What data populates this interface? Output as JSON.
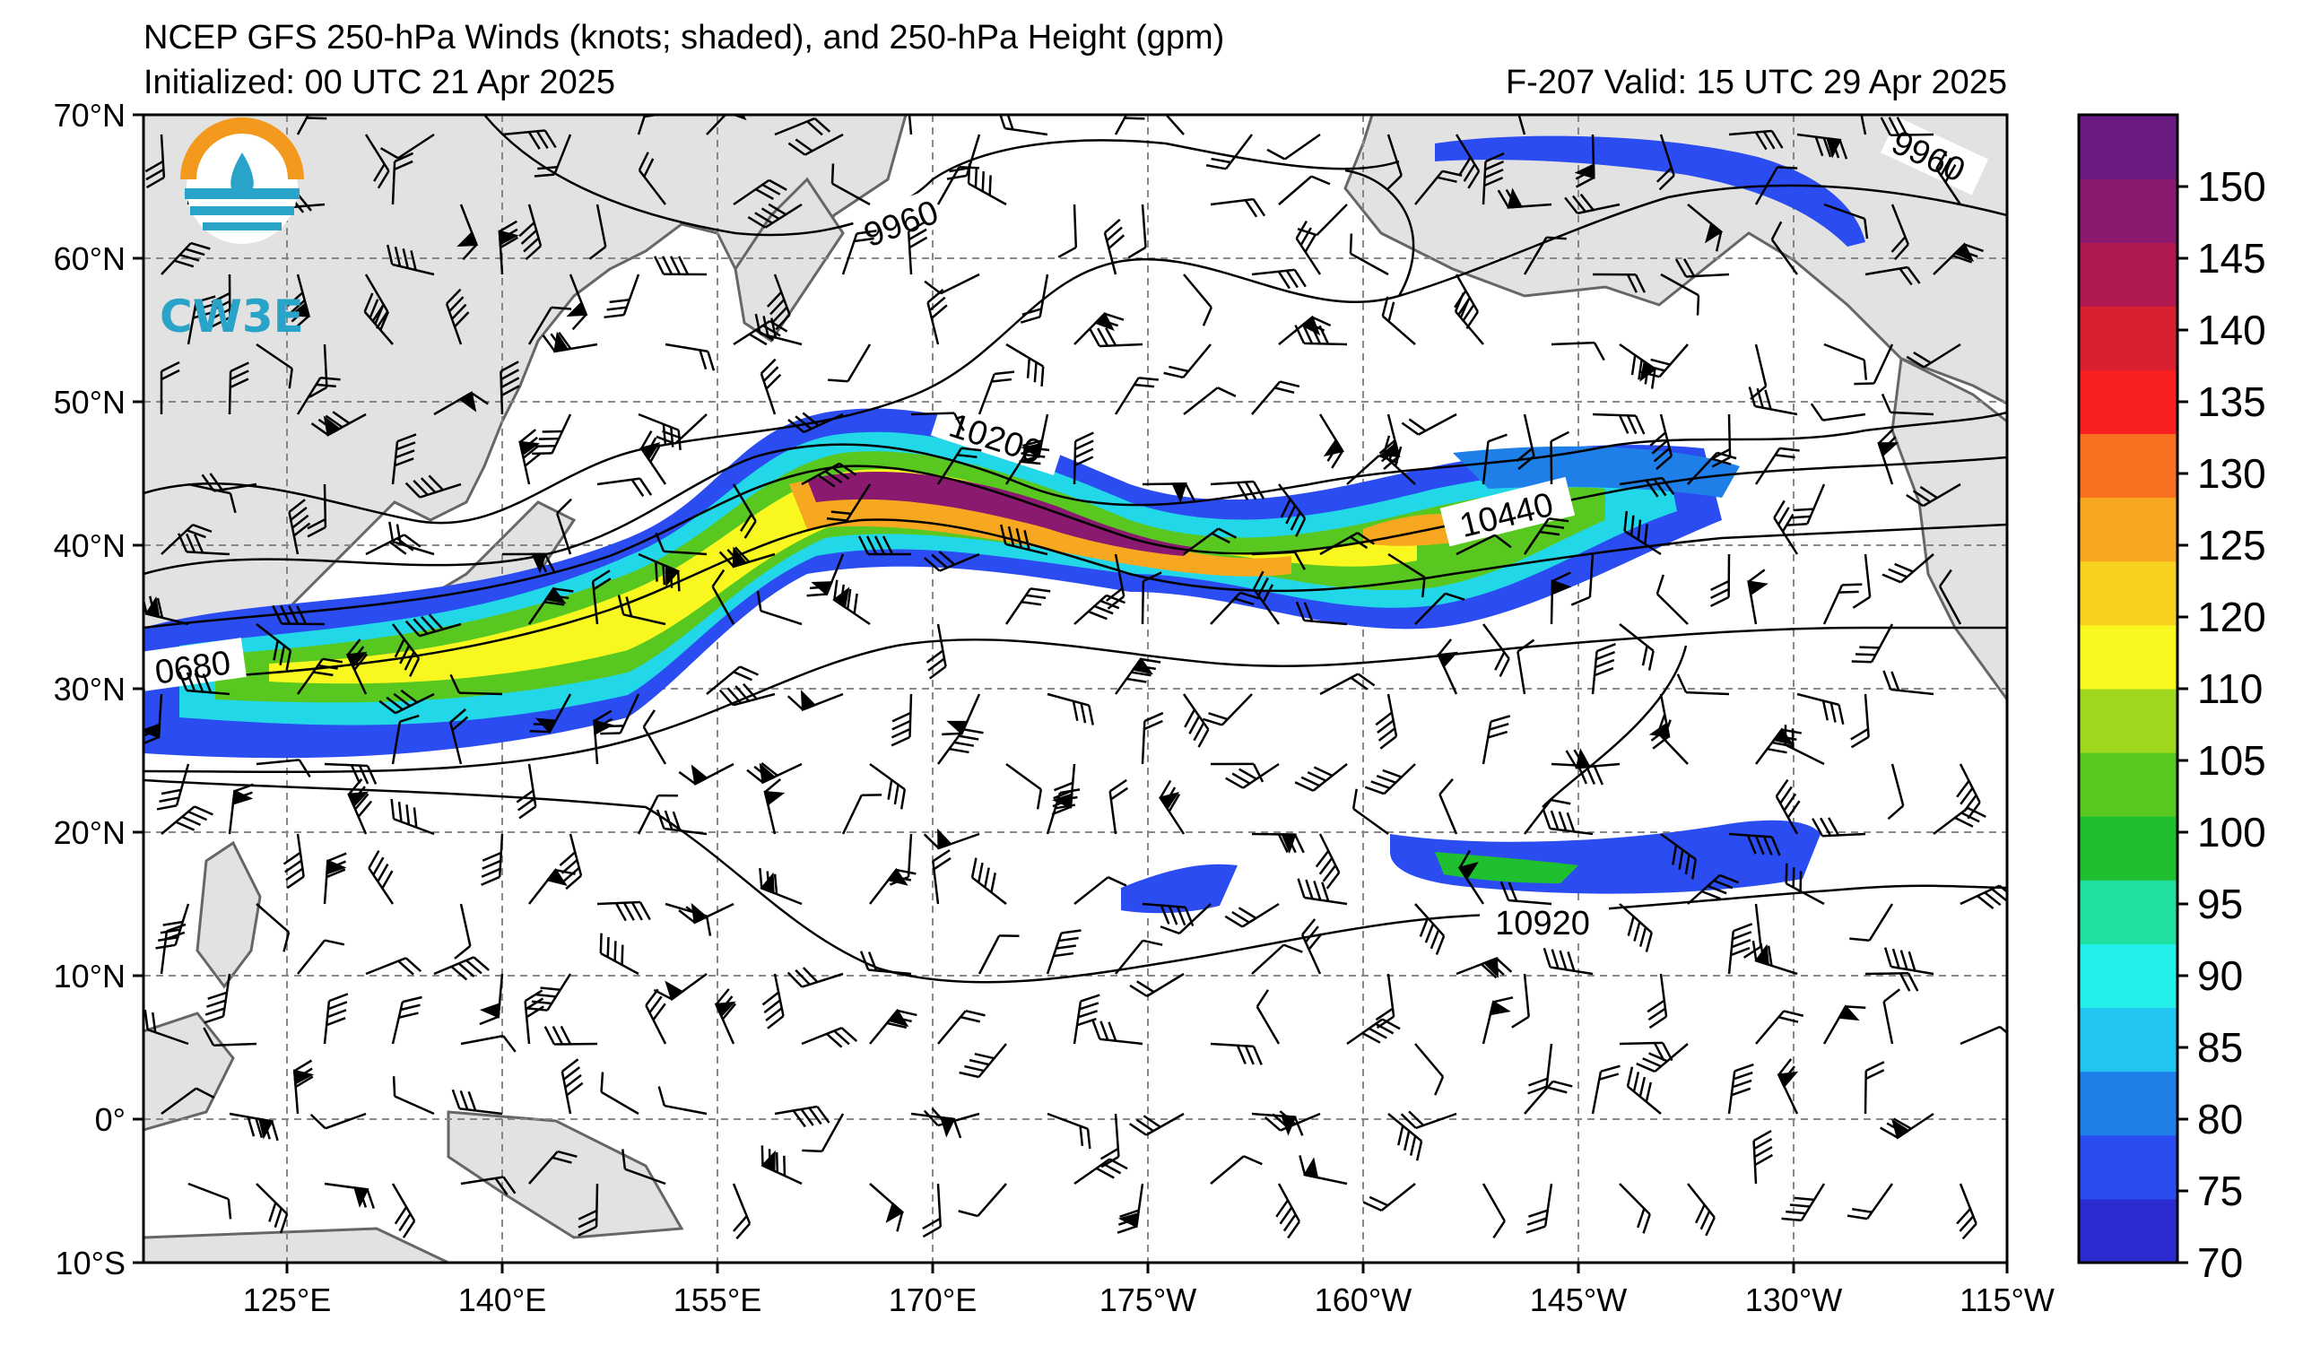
{
  "header": {
    "title": "NCEP GFS 250-hPa Winds (knots; shaded), and 250-hPa Height (gpm)",
    "initialized": "Initialized: 00 UTC 21 Apr 2025",
    "valid": "F-207  Valid: 15 UTC 29 Apr 2025"
  },
  "logo": {
    "text": "CW3E",
    "colors": [
      "#f39a1e",
      "#2aa3c8"
    ]
  },
  "axes": {
    "lat_labels": [
      "70°N",
      "60°N",
      "50°N",
      "40°N",
      "30°N",
      "20°N",
      "10°N",
      "0°",
      "10°S"
    ],
    "lon_labels": [
      "125°E",
      "140°E",
      "155°E",
      "170°E",
      "175°W",
      "160°W",
      "145°W",
      "130°W",
      "115°W"
    ]
  },
  "contour_labels": [
    "9960",
    "10200",
    "10440",
    "0680",
    "10920",
    "9960"
  ],
  "colorbar": {
    "ticks": [
      "70",
      "75",
      "80",
      "85",
      "90",
      "95",
      "100",
      "105",
      "110",
      "120",
      "125",
      "130",
      "135",
      "140",
      "145",
      "150"
    ],
    "colors": [
      "#2b2bd0",
      "#2a4cf0",
      "#1f7fe8",
      "#20c6f0",
      "#22f0e8",
      "#1fe0a0",
      "#1fc030",
      "#58c820",
      "#a0d820",
      "#f8f820",
      "#f8d020",
      "#f8a820",
      "#f87020",
      "#f82020",
      "#d82030",
      "#b01a50",
      "#8a1a70",
      "#6a1a80"
    ]
  }
}
